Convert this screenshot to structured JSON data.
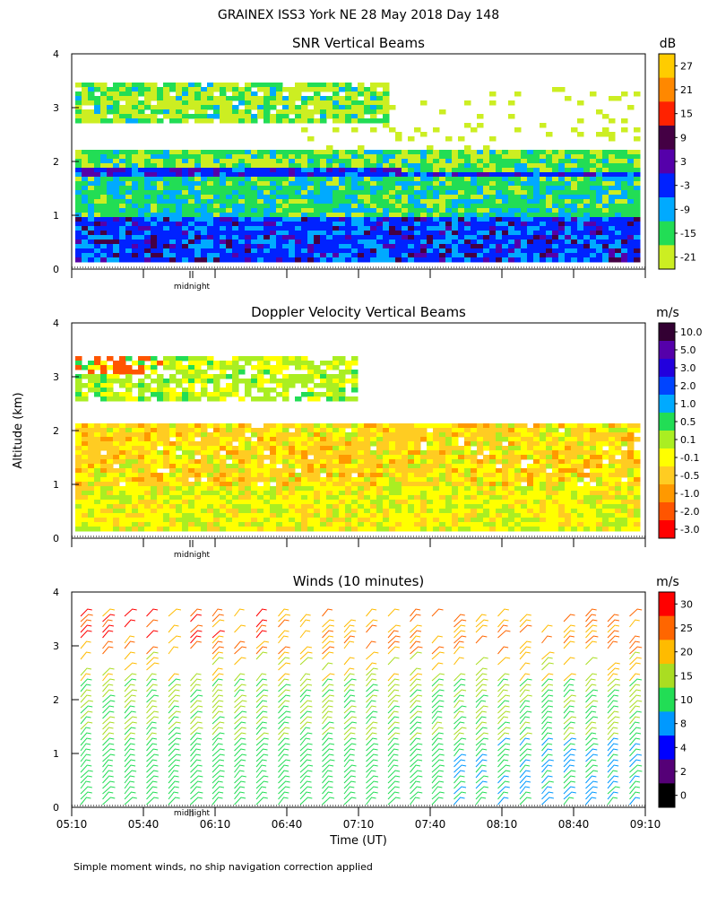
{
  "header": {
    "title": "GRAINEX ISS3 York NE  28 May 2018 Day 148",
    "footnote": "Simple moment winds, no ship navigation correction applied"
  },
  "axes": {
    "ylabel": "Altitude (km)",
    "xlabel": "Time (UT)",
    "midnight_label": "midnight"
  },
  "chart_data": [
    {
      "type": "heatmap",
      "title": "SNR Vertical Beams",
      "unit": "dB",
      "ylim": [
        0,
        4
      ],
      "yticks": [
        "0",
        "1",
        "2",
        "3",
        "4"
      ],
      "time_range": [
        "05:10",
        "09:10"
      ],
      "colorbar_labels": [
        "27",
        "21",
        "15",
        "9",
        "3",
        "-3",
        "-9",
        "-15",
        "-21"
      ],
      "colorbar_colors": [
        "#ffcc00",
        "#ff8800",
        "#ff2200",
        "#440044",
        "#5500aa",
        "#0022ff",
        "#00aaff",
        "#22dd55",
        "#ccee22"
      ]
    },
    {
      "type": "heatmap",
      "title": "Doppler Velocity Vertical Beams",
      "unit": "m/s",
      "ylim": [
        0,
        4
      ],
      "yticks": [
        "0",
        "1",
        "2",
        "3",
        "4"
      ],
      "time_range": [
        "05:10",
        "09:10"
      ],
      "colorbar_labels": [
        "10.0",
        "5.0",
        "3.0",
        "2.0",
        "1.0",
        "0.5",
        "0.1",
        "-0.1",
        "-0.5",
        "-1.0",
        "-2.0",
        "-3.0"
      ],
      "colorbar_colors": [
        "#330033",
        "#5500aa",
        "#2200dd",
        "#0044ff",
        "#00aaff",
        "#22dd55",
        "#aaee22",
        "#ffff00",
        "#ffcc22",
        "#ff9900",
        "#ff5500",
        "#ff0000"
      ]
    },
    {
      "type": "wind-barbs",
      "title": "Winds (10 minutes)",
      "unit": "m/s",
      "ylim": [
        0,
        4
      ],
      "yticks": [
        "0",
        "1",
        "2",
        "3",
        "4"
      ],
      "xticks": [
        "05:10",
        "05:40",
        "06:10",
        "06:40",
        "07:10",
        "07:40",
        "08:10",
        "08:40",
        "09:10"
      ],
      "colorbar_labels": [
        "30",
        "25",
        "20",
        "15",
        "10",
        "8",
        "4",
        "2",
        "0"
      ],
      "colorbar_colors": [
        "#ff0000",
        "#ff6600",
        "#ffbb00",
        "#aadd22",
        "#22dd55",
        "#0099ff",
        "#0000ff",
        "#550077",
        "#000000"
      ]
    }
  ]
}
